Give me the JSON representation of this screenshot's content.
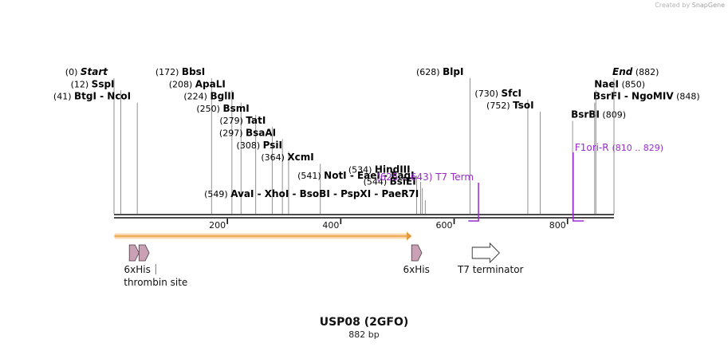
{
  "brand": {
    "created_by": "Created by",
    "name": "SnapGene"
  },
  "plasmid": {
    "name": "USP08 (2GFO)",
    "length_label": "882 bp",
    "length": 882
  },
  "colors": {
    "enzyme_text": "#000000",
    "feature_text": "#9a2bd0",
    "tag_fill": "#c9a0b4",
    "orf_fill": "#f7c07a",
    "orf_stroke": "#e39a36",
    "backbone": "#111111"
  },
  "ruler": {
    "ticks": [
      200,
      400,
      600,
      800
    ]
  },
  "enzymes": [
    {
      "id": "start",
      "pos_label": "(0)",
      "label": "Start",
      "pos": 0,
      "italic": true,
      "row": 10
    },
    {
      "id": "sspi",
      "pos_label": "(12)",
      "label": "SspI",
      "pos": 12,
      "row": 9
    },
    {
      "id": "btgi-ncoi",
      "pos_label": "(41)",
      "label": "BtgI  - NcoI",
      "pos": 41,
      "row": 8
    },
    {
      "id": "bbsi",
      "pos_label": "(172)",
      "label": "BbsI",
      "pos": 172,
      "row": 10
    },
    {
      "id": "apali",
      "pos_label": "(208)",
      "label": "ApaLI",
      "pos": 208,
      "row": 9
    },
    {
      "id": "bglii",
      "pos_label": "(224)",
      "label": "BglII",
      "pos": 224,
      "row": 8
    },
    {
      "id": "bsmi",
      "pos_label": "(250)",
      "label": "BsmI",
      "pos": 250,
      "row": 7
    },
    {
      "id": "tati",
      "pos_label": "(279)",
      "label": "TatI",
      "pos": 279,
      "row": 6
    },
    {
      "id": "bsaai",
      "pos_label": "(297)",
      "label": "BsaAI",
      "pos": 297,
      "row": 5
    },
    {
      "id": "psii",
      "pos_label": "(308)",
      "label": "PsiI",
      "pos": 308,
      "row": 4
    },
    {
      "id": "xcmi",
      "pos_label": "(364)",
      "label": "XcmI",
      "pos": 364,
      "row": 3
    },
    {
      "id": "hindiii",
      "pos_label": "(534)",
      "label": "HindIII",
      "pos": 534,
      "row": 2
    },
    {
      "id": "noti-eaei-eagi",
      "pos_label": "(541)",
      "label": "NotI  - EaeI  - EagI",
      "pos": 541,
      "row": 1.5
    },
    {
      "id": "bsiei",
      "pos_label": "(544)",
      "label": "BsiEI",
      "pos": 544,
      "row": 1
    },
    {
      "id": "avai-group",
      "pos_label": "(549)",
      "label": "AvaI  - XhoI  - BsoBI  - PspXI  - PaeR7I",
      "pos": 549,
      "row": 0
    },
    {
      "id": "blpi",
      "pos_label": "(628)",
      "label": "BlpI",
      "pos": 628,
      "row": 10
    },
    {
      "id": "sfci",
      "pos_label": "(730)",
      "label": "SfcI",
      "pos": 730,
      "row": 8.25
    },
    {
      "id": "tsoi",
      "pos_label": "(752)",
      "label": "TsoI",
      "pos": 752,
      "row": 7.25
    },
    {
      "id": "bsrbi",
      "pos_label": "(809)",
      "label": "BsrBI",
      "pos": 809,
      "row": 6.5
    },
    {
      "id": "bsrfi-ngomiv",
      "pos_label": "(848)",
      "label": "BsrFI  - NgoMIV",
      "pos": 848,
      "row": 8
    },
    {
      "id": "naei",
      "pos_label": "(850)",
      "label": "NaeI",
      "pos": 850,
      "row": 9
    },
    {
      "id": "end",
      "pos_label": "(882)",
      "label": "End",
      "pos": 882,
      "italic": true,
      "row": 10
    }
  ],
  "primers": [
    {
      "id": "t7-term",
      "label": "T7 Term",
      "range_label": "(625 .. 643)",
      "start": 625,
      "end": 643
    },
    {
      "id": "f1ori-r",
      "label": "F1ori-R",
      "range_label": "(810 .. 829)",
      "start": 810,
      "end": 829
    }
  ],
  "orf": {
    "start": 1,
    "end": 525
  },
  "features": [
    {
      "id": "6xhis-1",
      "label": "6xHis",
      "start": 27,
      "end": 44,
      "type": "tag"
    },
    {
      "id": "thrombin-site",
      "label": "thrombin site",
      "start": 44,
      "end": 62,
      "type": "tag"
    },
    {
      "id": "6xhis-2",
      "label": "6xHis",
      "start": 525,
      "end": 543,
      "type": "tag"
    },
    {
      "id": "t7-terminator",
      "label": "T7 terminator",
      "start": 646,
      "end": 694,
      "type": "terminator"
    }
  ]
}
